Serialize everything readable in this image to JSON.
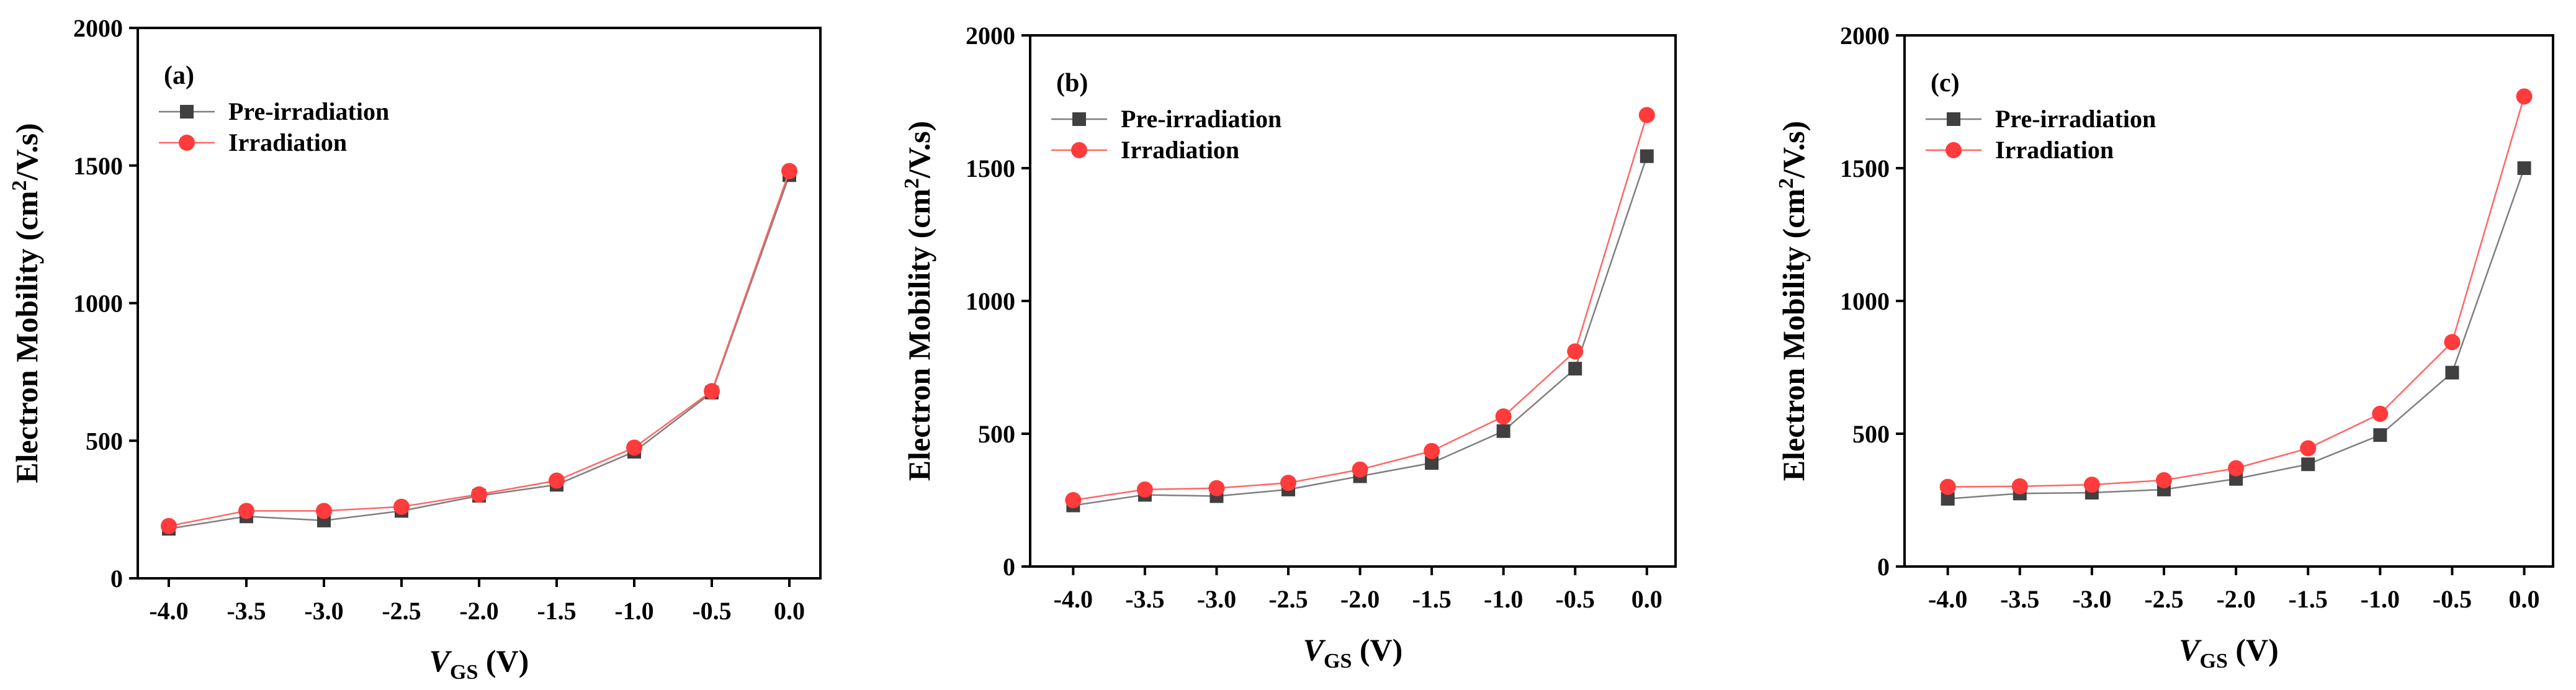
{
  "chart_data": [
    {
      "type": "line",
      "panel_label": "(a)",
      "xlabel_main": "V",
      "xlabel_sub": "GS",
      "xlabel_unit": " (V)",
      "ylabel_main": "Electron Mobility (cm",
      "ylabel_sup": "2",
      "ylabel_unit": "/V.s)",
      "xlim": [
        -4.2,
        0.2
      ],
      "ylim": [
        0,
        2000
      ],
      "x": [
        -4.0,
        -3.5,
        -3.0,
        -2.5,
        -2.0,
        -1.5,
        -1.0,
        -0.5,
        0.0
      ],
      "x_tick_labels": [
        "-4.0",
        "-3.5",
        "-3.0",
        "-2.5",
        "-2.0",
        "-1.5",
        "-1.0",
        "-0.5",
        "0.0"
      ],
      "y_ticks": [
        0,
        500,
        1000,
        1500,
        2000
      ],
      "y_tick_labels": [
        "0",
        "500",
        "1000",
        "1500",
        "2000"
      ],
      "legend_position": "top-left",
      "series": [
        {
          "name": "Pre-irradiation",
          "marker": "square",
          "color": "#404040",
          "line_color": "#7f7f7f",
          "values": [
            180,
            225,
            210,
            245,
            300,
            340,
            460,
            675,
            1465
          ]
        },
        {
          "name": "Irradiation",
          "marker": "circle",
          "color": "#ff3b3b",
          "line_color": "#ff6666",
          "values": [
            190,
            245,
            245,
            260,
            305,
            355,
            475,
            680,
            1480
          ]
        }
      ]
    },
    {
      "type": "line",
      "panel_label": "(b)",
      "xlabel_main": "V",
      "xlabel_sub": "GS",
      "xlabel_unit": " (V)",
      "ylabel_main": "Electron Mobility (cm",
      "ylabel_sup": "2",
      "ylabel_unit": "/V.s)",
      "xlim": [
        -4.3,
        0.2
      ],
      "ylim": [
        0,
        2000
      ],
      "x": [
        -4.0,
        -3.5,
        -3.0,
        -2.5,
        -2.0,
        -1.5,
        -1.0,
        -0.5,
        0.0
      ],
      "x_tick_labels": [
        "-4.0",
        "-3.5",
        "-3.0",
        "-2.5",
        "-2.0",
        "-1.5",
        "-1.0",
        "-0.5",
        "0.0"
      ],
      "y_ticks": [
        0,
        500,
        1000,
        1500,
        2000
      ],
      "y_tick_labels": [
        "0",
        "500",
        "1000",
        "1500",
        "2000"
      ],
      "legend_position": "top-left",
      "series": [
        {
          "name": "Pre-irradiation",
          "marker": "square",
          "color": "#404040",
          "line_color": "#7f7f7f",
          "values": [
            230,
            270,
            265,
            290,
            340,
            390,
            510,
            745,
            1545
          ]
        },
        {
          "name": "Irradiation",
          "marker": "circle",
          "color": "#ff3b3b",
          "line_color": "#ff6666",
          "values": [
            250,
            290,
            295,
            315,
            365,
            435,
            565,
            810,
            1700
          ]
        }
      ]
    },
    {
      "type": "line",
      "panel_label": "(c)",
      "xlabel_main": "V",
      "xlabel_sub": "GS",
      "xlabel_unit": " (V)",
      "ylabel_main": "Electron Mobility (cm",
      "ylabel_sup": "2",
      "ylabel_unit": "/V.s)",
      "xlim": [
        -4.3,
        0.2
      ],
      "ylim": [
        0,
        2000
      ],
      "x": [
        -4.0,
        -3.5,
        -3.0,
        -2.5,
        -2.0,
        -1.5,
        -1.0,
        -0.5,
        0.0
      ],
      "x_tick_labels": [
        "-4.0",
        "-3.5",
        "-3.0",
        "-2.5",
        "-2.0",
        "-1.5",
        "-1.0",
        "-0.5",
        "0.0"
      ],
      "y_ticks": [
        0,
        500,
        1000,
        1500,
        2000
      ],
      "y_tick_labels": [
        "0",
        "500",
        "1000",
        "1500",
        "2000"
      ],
      "legend_position": "top-left",
      "series": [
        {
          "name": "Pre-irradiation",
          "marker": "square",
          "color": "#404040",
          "line_color": "#7f7f7f",
          "values": [
            255,
            275,
            278,
            290,
            330,
            385,
            495,
            730,
            1500
          ]
        },
        {
          "name": "Irradiation",
          "marker": "circle",
          "color": "#ff3b3b",
          "line_color": "#ff6666",
          "values": [
            300,
            302,
            308,
            325,
            370,
            445,
            575,
            845,
            1770
          ]
        }
      ]
    }
  ]
}
